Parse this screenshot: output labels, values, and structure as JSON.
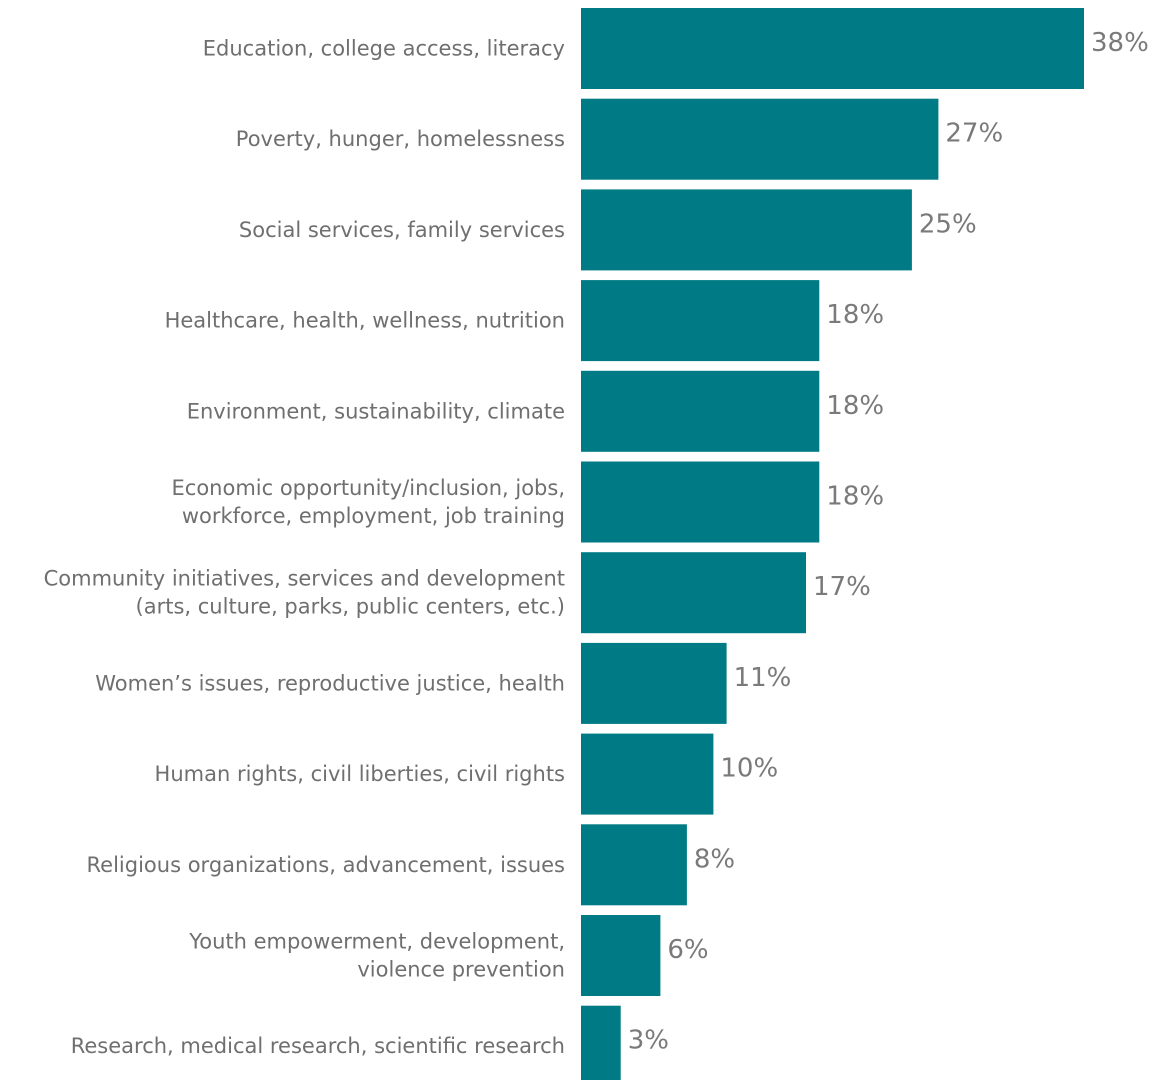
{
  "colors": {
    "bar": "#007A84",
    "category_text": "#6f6f6f",
    "value_text": "#7a7a7a",
    "background": "#ffffff"
  },
  "chart_data": {
    "type": "bar",
    "orientation": "horizontal",
    "title": "",
    "xlabel": "",
    "ylabel": "",
    "grid": false,
    "legend": "none",
    "xlim": [
      0,
      38
    ],
    "unit_suffix": "%",
    "categories": [
      [
        "Education, college access, literacy"
      ],
      [
        "Poverty, hunger, homelessness"
      ],
      [
        "Social services, family services"
      ],
      [
        "Healthcare, health, wellness, nutrition"
      ],
      [
        "Environment, sustainability, climate"
      ],
      [
        "Economic opportunity/inclusion, jobs,",
        "workforce, employment, job training"
      ],
      [
        "Community initiatives, services and development",
        "(arts, culture, parks, public centers, etc.)"
      ],
      [
        "Women’s issues, reproductive justice, health"
      ],
      [
        "Human rights, civil liberties, civil rights"
      ],
      [
        "Religious organizations, advancement, issues"
      ],
      [
        "Youth empowerment, development,",
        "violence prevention"
      ],
      [
        "Research, medical research, scientific research"
      ]
    ],
    "values": [
      38,
      27,
      25,
      18,
      18,
      18,
      17,
      11,
      10,
      8,
      6,
      3
    ],
    "value_labels": [
      "38%",
      "27%",
      "25%",
      "18%",
      "18%",
      "18%",
      "17%",
      "11%",
      "10%",
      "8%",
      "6%",
      "3%"
    ]
  }
}
